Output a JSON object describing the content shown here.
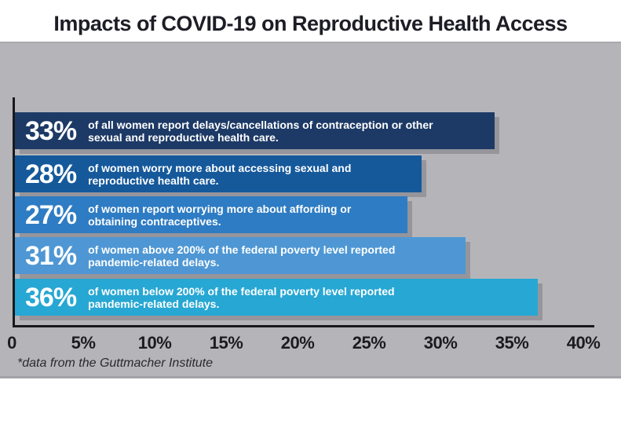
{
  "page": {
    "title": "Impacts of COVID-19 on Reproductive Health Access",
    "footnote": "*data from the Guttmacher Institute"
  },
  "colors": {
    "panel_bg": "#b5b5b9",
    "axis": "#19191c",
    "title_text": "#1d1d26",
    "bar_text": "#ffffff",
    "bar_shadow": "#95959b",
    "bar_colors": [
      "#1d3a66",
      "#15599b",
      "#2e7cc3",
      "#4e97d4",
      "#27a7d3"
    ]
  },
  "chart_data": {
    "type": "bar",
    "orientation": "horizontal",
    "title": "Impacts of COVID-19 on Reproductive Health Access",
    "xlabel": "",
    "ylabel": "",
    "xlim": [
      0,
      40
    ],
    "x_ticks": [
      "0",
      "5%",
      "10%",
      "15%",
      "20%",
      "25%",
      "30%",
      "35%",
      "40%"
    ],
    "grid": false,
    "legend": false,
    "footnote": "*data from the Guttmacher Institute",
    "bars": [
      {
        "value": 33,
        "value_label": "33%",
        "description": "of all women report delays/cancellations of contraception or other\nsexual and reproductive health care.",
        "color": "#1d3a66"
      },
      {
        "value": 28,
        "value_label": "28%",
        "description": "of women worry more about accessing sexual and\nreproductive health care.",
        "color": "#15599b"
      },
      {
        "value": 27,
        "value_label": "27%",
        "description": "of women report worrying more about affording or\nobtaining contraceptives.",
        "color": "#2e7cc3"
      },
      {
        "value": 31,
        "value_label": "31%",
        "description": "of women above 200% of the federal poverty level reported\npandemic-related delays.",
        "color": "#4e97d4"
      },
      {
        "value": 36,
        "value_label": "36%",
        "description": "of women below 200% of the federal poverty level reported\npandemic-related delays.",
        "color": "#27a7d3"
      }
    ]
  }
}
